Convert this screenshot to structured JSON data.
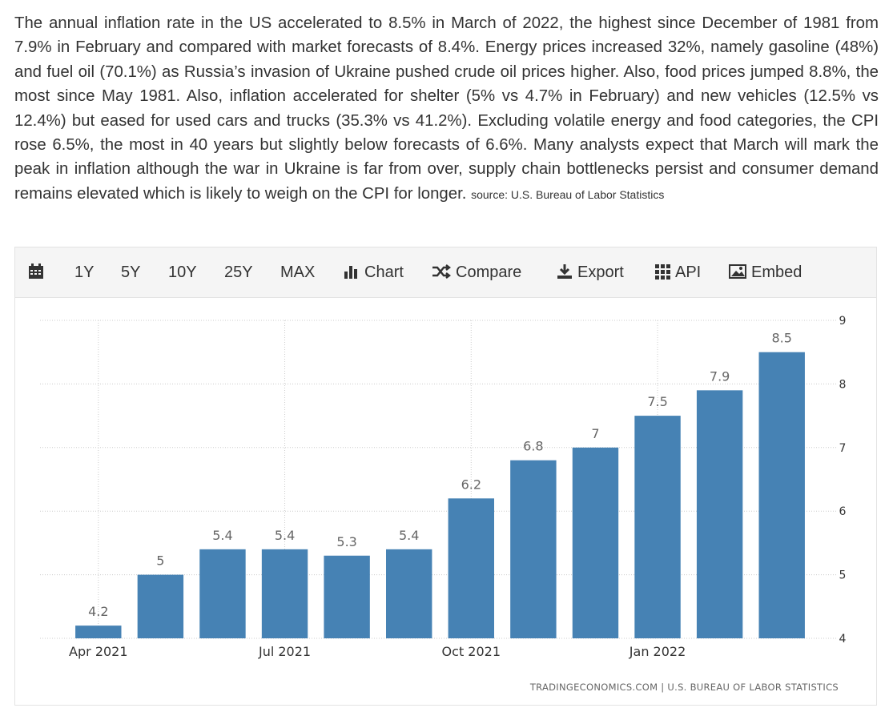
{
  "article": {
    "text": "The annual inflation rate in the US accelerated to 8.5% in March of 2022, the highest since December of 1981 from 7.9% in February and compared with market forecasts of 8.4%. Energy prices increased 32%, namely gasoline (48%) and fuel oil (70.1%) as Russia’s invasion of Ukraine pushed crude oil prices higher. Also, food prices jumped 8.8%, the most since May 1981. Also, inflation accelerated for shelter (5% vs 4.7% in February) and new vehicles (12.5% vs 12.4%) but eased for used cars and trucks (35.3% vs 41.2%). Excluding volatile energy and food categories, the CPI rose 6.5%, the most in 40 years but slightly below forecasts of 6.6%. Many analysts expect that March will mark the peak in inflation although the war in Ukraine is far from over, supply chain bottlenecks persist and consumer demand remains elevated which is likely to weigh on the CPI for longer.",
    "source": "source: U.S. Bureau of Labor Statistics"
  },
  "toolbar": [
    "1Y",
    "5Y",
    "10Y",
    "25Y",
    "MAX",
    "Chart",
    "Compare",
    "Export",
    "API",
    "Embed"
  ],
  "chart_data": {
    "type": "bar",
    "categories": [
      "Apr 2021",
      null,
      null,
      "Jul 2021",
      null,
      null,
      "Oct 2021",
      null,
      null,
      "Jan 2022",
      null,
      null
    ],
    "values": [
      4.2,
      5,
      5.4,
      5.4,
      5.3,
      5.4,
      6.2,
      6.8,
      7,
      7.5,
      7.9,
      8.5
    ],
    "color": "#4682b4",
    "ylim": [
      4,
      9
    ],
    "yticks": [
      4,
      5,
      6,
      7,
      8,
      9
    ],
    "grid": true,
    "credit": "TRADINGECONOMICS.COM | U.S. BUREAU OF LABOR STATISTICS"
  }
}
